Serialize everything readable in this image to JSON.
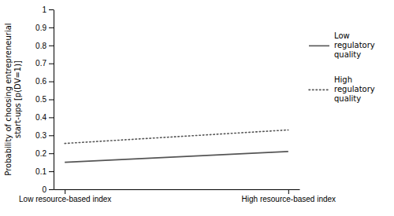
{
  "chart_data": {
    "type": "line",
    "x": [
      0,
      1
    ],
    "xlim": [
      -0.05,
      1.05
    ],
    "xticks": [
      {
        "value": 0,
        "label": "Low resource-based index"
      },
      {
        "value": 1,
        "label": "High resource-based index"
      }
    ],
    "ylim": [
      0,
      1
    ],
    "yticks": [
      0,
      0.1,
      0.2,
      0.3,
      0.4,
      0.5,
      0.6,
      0.7,
      0.8,
      0.9,
      1
    ],
    "ylabel": "Probability of choosing entrepreneurial\nstart-ups [p(DV=1)]",
    "series": [
      {
        "name": "Low\nregulatory\nquality",
        "color": "#555555",
        "line_style": "solid",
        "values": [
          0.15,
          0.21
        ]
      },
      {
        "name": "High\nregulatory\nquality",
        "color": "#555555",
        "line_style": "dotted",
        "values": [
          0.255,
          0.33
        ]
      }
    ],
    "grid": false,
    "legend": "right"
  }
}
